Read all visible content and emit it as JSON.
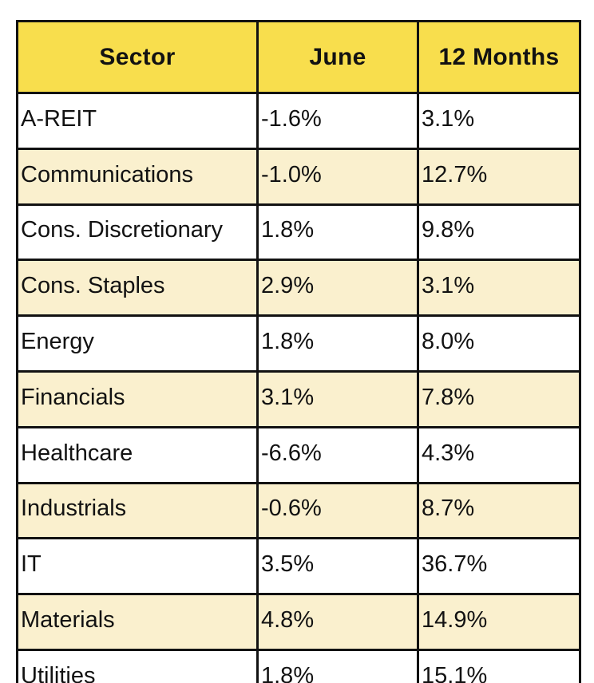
{
  "table": {
    "columns": {
      "sector": "Sector",
      "june": "June",
      "twelve_months": "12 Months"
    },
    "rows": [
      {
        "sector": "A-REIT",
        "june": "-1.6%",
        "twelve_months": "3.1%"
      },
      {
        "sector": "Communications",
        "june": "-1.0%",
        "twelve_months": "12.7%"
      },
      {
        "sector": "Cons. Discretionary",
        "june": "1.8%",
        "twelve_months": "9.8%"
      },
      {
        "sector": "Cons. Staples",
        "june": "2.9%",
        "twelve_months": "3.1%"
      },
      {
        "sector": "Energy",
        "june": "1.8%",
        "twelve_months": "8.0%"
      },
      {
        "sector": "Financials",
        "june": "3.1%",
        "twelve_months": "7.8%"
      },
      {
        "sector": "Healthcare",
        "june": "-6.6%",
        "twelve_months": "4.3%"
      },
      {
        "sector": "Industrials",
        "june": "-0.6%",
        "twelve_months": "8.7%"
      },
      {
        "sector": "IT",
        "june": "3.5%",
        "twelve_months": "36.7%"
      },
      {
        "sector": "Materials",
        "june": "4.8%",
        "twelve_months": "14.9%"
      },
      {
        "sector": "Utilities",
        "june": "1.8%",
        "twelve_months": "15.1%"
      }
    ]
  },
  "chart_data": {
    "type": "table",
    "title": "Sector performance",
    "categories": [
      "A-REIT",
      "Communications",
      "Cons. Discretionary",
      "Cons. Staples",
      "Energy",
      "Financials",
      "Healthcare",
      "Industrials",
      "IT",
      "Materials",
      "Utilities"
    ],
    "series": [
      {
        "name": "June",
        "values": [
          -1.6,
          -1.0,
          1.8,
          2.9,
          1.8,
          3.1,
          -6.6,
          -0.6,
          3.5,
          4.8,
          1.8
        ]
      },
      {
        "name": "12 Months",
        "values": [
          3.1,
          12.7,
          9.8,
          3.1,
          8.0,
          7.8,
          4.3,
          8.7,
          36.7,
          14.9,
          15.1
        ]
      }
    ]
  },
  "colors": {
    "header_bg": "#F8DE4D",
    "alt_row_bg": "#FAF0CE",
    "row_bg": "#FFFFFF",
    "border": "#121212",
    "text": "#121212"
  }
}
